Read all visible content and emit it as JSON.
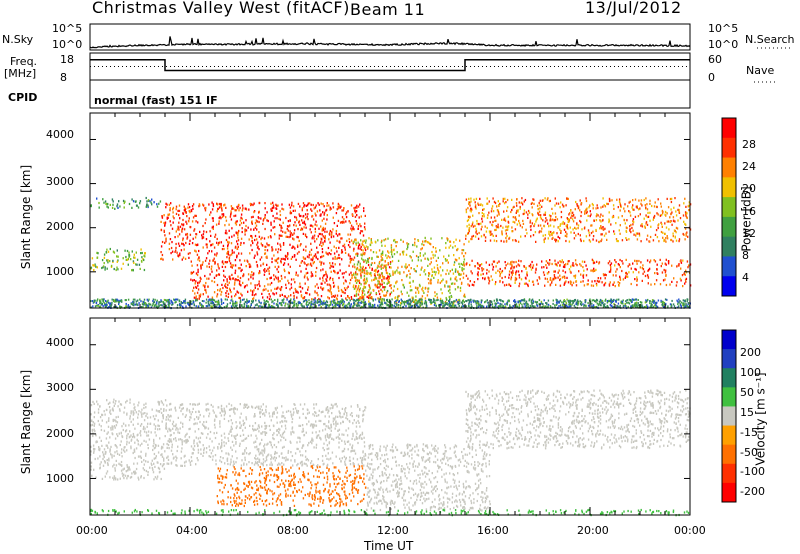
{
  "header": {
    "station": "Christmas Valley West (fitACF)",
    "beam": "Beam 11",
    "date": "13/Jul/2012"
  },
  "strips": {
    "nsky_label": "N.Sky",
    "nsky_ticks": [
      "10^5",
      "10^0"
    ],
    "nsearch_label": "N.Search",
    "freq_label_1": "Freq.",
    "freq_label_2": "[MHz]",
    "freq_ticks": [
      "18",
      "8"
    ],
    "nave_label": "Nave",
    "nave_ticks": [
      "60",
      "0"
    ],
    "cpid_label": "CPID",
    "cpid_value": "normal (fast) 151 IF"
  },
  "panels": {
    "ylabel": "Slant Range [km]",
    "xlabel": "Time UT",
    "yticks": [
      "4000",
      "3000",
      "2000",
      "1000"
    ],
    "xticks": [
      "00:00",
      "04:00",
      "08:00",
      "12:00",
      "16:00",
      "20:00",
      "00:00"
    ],
    "power_colorbar_label": "Power [dB]",
    "power_colorbar_ticks": [
      "28",
      "24",
      "20",
      "16",
      "12",
      "8",
      "4"
    ],
    "velocity_colorbar_label": "Velocity [m s⁻¹]",
    "velocity_colorbar_ticks": [
      "200",
      "100",
      "50",
      "15",
      "-15",
      "-50",
      "-100",
      "-200"
    ]
  },
  "chart_data": [
    {
      "type": "line",
      "name": "N.Sky / N.Search",
      "x_hours": [
        0,
        2,
        3,
        4,
        6,
        8,
        10,
        12,
        14,
        15,
        16,
        18,
        20,
        22,
        24
      ],
      "nsky_log10": [
        0.5,
        0.9,
        1.0,
        1.1,
        1.1,
        1.2,
        1.1,
        1.0,
        1.3,
        1.2,
        0.9,
        0.9,
        0.9,
        0.9,
        0.8
      ],
      "ylim_log10": [
        0,
        5
      ]
    },
    {
      "type": "line",
      "name": "Frequency / Nave",
      "segments_freq_mhz": [
        {
          "from": 0,
          "to": 3,
          "value": 15.5
        },
        {
          "from": 3,
          "to": 15,
          "value": 11.5
        },
        {
          "from": 15,
          "to": 24,
          "value": 15.5
        }
      ],
      "nave": 30,
      "freq_ylim": [
        8,
        18
      ],
      "nave_ylim": [
        0,
        60
      ]
    },
    {
      "type": "heatmap",
      "name": "Power",
      "x_range_hours": [
        0,
        24
      ],
      "y_range_km": [
        180,
        4600
      ],
      "value_range": [
        0,
        30
      ],
      "colors": [
        "#0000ee",
        "#2050d0",
        "#308060",
        "#40a040",
        "#80c020",
        "#f0c000",
        "#ff8000",
        "#ff3000",
        "#ff0000"
      ],
      "features": [
        {
          "x0": 0.0,
          "x1": 2.8,
          "y0": 2450,
          "y1": 2700,
          "value": 10
        },
        {
          "x0": 0.0,
          "x1": 2.2,
          "y0": 1050,
          "y1": 1550,
          "value": 14
        },
        {
          "x0": 2.8,
          "x1": 11.0,
          "y0": 1300,
          "y1": 2600,
          "value": 26
        },
        {
          "x0": 4.0,
          "x1": 12.0,
          "y0": 400,
          "y1": 1300,
          "value": 25
        },
        {
          "x0": 10.5,
          "x1": 15.0,
          "y0": 300,
          "y1": 1800,
          "value": 18
        },
        {
          "x0": 15.0,
          "x1": 24.0,
          "y0": 700,
          "y1": 1300,
          "value": 24
        },
        {
          "x0": 15.0,
          "x1": 24.0,
          "y0": 1700,
          "y1": 2700,
          "value": 22
        }
      ]
    },
    {
      "type": "heatmap",
      "name": "Velocity",
      "x_range_hours": [
        0,
        24
      ],
      "y_range_km": [
        180,
        4600
      ],
      "value_range": [
        -200,
        200
      ],
      "features": [
        {
          "x0": 0.0,
          "x1": 3.0,
          "y0": 1000,
          "y1": 2800,
          "value": 0
        },
        {
          "x0": 3.0,
          "x1": 11.0,
          "y0": 1300,
          "y1": 2700,
          "value": 0
        },
        {
          "x0": 5.0,
          "x1": 11.0,
          "y0": 400,
          "y1": 1300,
          "value": -60
        },
        {
          "x0": 11.0,
          "x1": 16.0,
          "y0": 300,
          "y1": 1800,
          "value": 0
        },
        {
          "x0": 15.0,
          "x1": 24.0,
          "y0": 1700,
          "y1": 3000,
          "value": 0
        },
        {
          "x0": 0.0,
          "x1": 24.0,
          "y0": 200,
          "y1": 320,
          "value": 30
        }
      ]
    }
  ]
}
